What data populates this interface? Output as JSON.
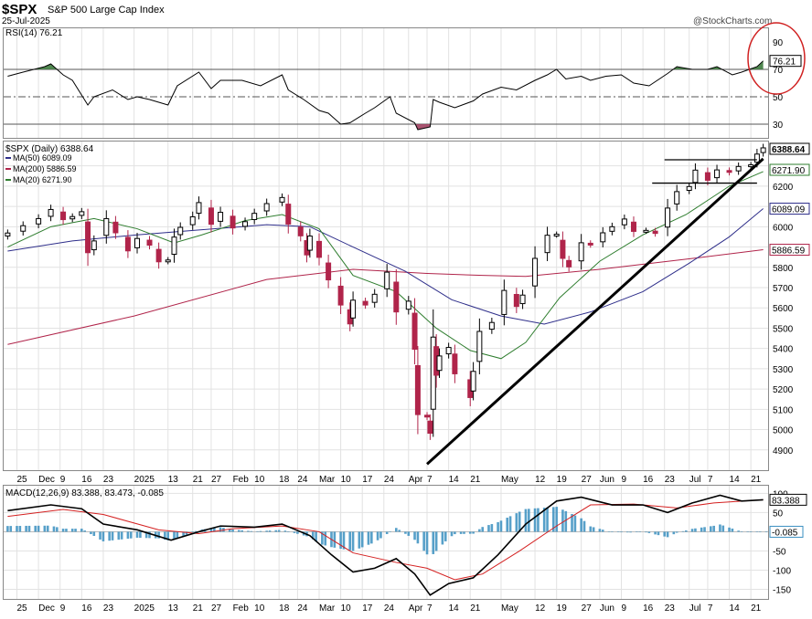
{
  "header": {
    "symbol": "$SPX",
    "name": "S&P 500 Large Cap Index",
    "date": "25-Jul-2025",
    "watermark": "@StockCharts.com"
  },
  "chart_data": [
    {
      "type": "line",
      "panel": "rsi",
      "label": "RSI(14) 76.21",
      "current_value": 76.21,
      "ylim": [
        20,
        100
      ],
      "ticks": [
        90,
        70,
        50,
        30
      ],
      "ref_lines": [
        70,
        50,
        30
      ],
      "points": [
        [
          "2024-11-22",
          65
        ],
        [
          "2024-11-27",
          68
        ],
        [
          "2024-12-04",
          72
        ],
        [
          "2024-12-06",
          74
        ],
        [
          "2024-12-10",
          66
        ],
        [
          "2024-12-13",
          62
        ],
        [
          "2024-12-18",
          44
        ],
        [
          "2024-12-20",
          50
        ],
        [
          "2024-12-26",
          55
        ],
        [
          "2024-12-31",
          48
        ],
        [
          "2025-01-03",
          50
        ],
        [
          "2025-01-07",
          48
        ],
        [
          "2025-01-13",
          44
        ],
        [
          "2025-01-16",
          58
        ],
        [
          "2025-01-23",
          68
        ],
        [
          "2025-01-27",
          56
        ],
        [
          "2025-01-30",
          62
        ],
        [
          "2025-02-06",
          62
        ],
        [
          "2025-02-12",
          58
        ],
        [
          "2025-02-19",
          66
        ],
        [
          "2025-02-21",
          55
        ],
        [
          "2025-02-26",
          48
        ],
        [
          "2025-03-03",
          40
        ],
        [
          "2025-03-06",
          38
        ],
        [
          "2025-03-10",
          30
        ],
        [
          "2025-03-13",
          31
        ],
        [
          "2025-03-18",
          38
        ],
        [
          "2025-03-21",
          42
        ],
        [
          "2025-03-26",
          50
        ],
        [
          "2025-03-28",
          38
        ],
        [
          "2025-04-03",
          31
        ],
        [
          "2025-04-04",
          26
        ],
        [
          "2025-04-08",
          28
        ],
        [
          "2025-04-09",
          48
        ],
        [
          "2025-04-11",
          46
        ],
        [
          "2025-04-16",
          42
        ],
        [
          "2025-04-22",
          47
        ],
        [
          "2025-04-25",
          52
        ],
        [
          "2025-05-01",
          57
        ],
        [
          "2025-05-06",
          55
        ],
        [
          "2025-05-12",
          62
        ],
        [
          "2025-05-16",
          66
        ],
        [
          "2025-05-19",
          70
        ],
        [
          "2025-05-22",
          63
        ],
        [
          "2025-05-27",
          65
        ],
        [
          "2025-05-30",
          62
        ],
        [
          "2025-06-04",
          65
        ],
        [
          "2025-06-09",
          66
        ],
        [
          "2025-06-13",
          60
        ],
        [
          "2025-06-18",
          58
        ],
        [
          "2025-06-24",
          67
        ],
        [
          "2025-06-27",
          72
        ],
        [
          "2025-07-02",
          70
        ],
        [
          "2025-07-07",
          70
        ],
        [
          "2025-07-10",
          72
        ],
        [
          "2025-07-15",
          66
        ],
        [
          "2025-07-18",
          68
        ],
        [
          "2025-07-23",
          72
        ],
        [
          "2025-07-25",
          76.21
        ]
      ]
    },
    {
      "type": "candlestick",
      "panel": "price",
      "label": "$SPX (Daily) 6388.64",
      "last": 6388.64,
      "ylim": [
        4800,
        6420
      ],
      "ticks": [
        4900,
        5000,
        5100,
        5200,
        5300,
        5400,
        5500,
        5600,
        5700,
        5800,
        5900,
        6000,
        6100,
        6200,
        6300
      ],
      "value_flags": [
        {
          "value": 6388.64,
          "color": "#000000"
        },
        {
          "value": 6271.9,
          "color": "#2e7d2e"
        },
        {
          "value": 6089.09,
          "color": "#2e2e8a"
        },
        {
          "value": 5886.59,
          "color": "#b0244a"
        }
      ],
      "legend": [
        {
          "name": "MA(50) 6089.09",
          "color": "#2e2e8a"
        },
        {
          "name": "MA(200) 5886.59",
          "color": "#b0244a"
        },
        {
          "name": "MA(20) 6271.90",
          "color": "#2e7d2e"
        }
      ],
      "close": [
        [
          "2024-11-22",
          5969
        ],
        [
          "2024-11-27",
          6005
        ],
        [
          "2024-12-02",
          6040
        ],
        [
          "2024-12-06",
          6085
        ],
        [
          "2024-12-10",
          6035
        ],
        [
          "2024-12-13",
          6050
        ],
        [
          "2024-12-16",
          6074
        ],
        [
          "2024-12-18",
          5872
        ],
        [
          "2024-12-20",
          5930
        ],
        [
          "2024-12-24",
          6040
        ],
        [
          "2024-12-27",
          5970
        ],
        [
          "2024-12-31",
          5881
        ],
        [
          "2025-01-03",
          5942
        ],
        [
          "2025-01-07",
          5909
        ],
        [
          "2025-01-10",
          5827
        ],
        [
          "2025-01-13",
          5836
        ],
        [
          "2025-01-15",
          5949
        ],
        [
          "2025-01-17",
          5997
        ],
        [
          "2025-01-21",
          6049
        ],
        [
          "2025-01-23",
          6119
        ],
        [
          "2025-01-27",
          6012
        ],
        [
          "2025-01-30",
          6071
        ],
        [
          "2025-02-03",
          5994
        ],
        [
          "2025-02-07",
          6025
        ],
        [
          "2025-02-10",
          6066
        ],
        [
          "2025-02-14",
          6114
        ],
        [
          "2025-02-19",
          6144
        ],
        [
          "2025-02-21",
          6013
        ],
        [
          "2025-02-25",
          5955
        ],
        [
          "2025-02-27",
          5861
        ],
        [
          "2025-02-28",
          5954
        ],
        [
          "2025-03-03",
          5849
        ],
        [
          "2025-03-06",
          5738
        ],
        [
          "2025-03-10",
          5614
        ],
        [
          "2025-03-13",
          5521
        ],
        [
          "2025-03-14",
          5638
        ],
        [
          "2025-03-18",
          5614
        ],
        [
          "2025-03-21",
          5667
        ],
        [
          "2025-03-25",
          5776
        ],
        [
          "2025-03-28",
          5580
        ],
        [
          "2025-04-01",
          5633
        ],
        [
          "2025-04-03",
          5396
        ],
        [
          "2025-04-04",
          5074
        ],
        [
          "2025-04-07",
          5062
        ],
        [
          "2025-04-08",
          4982
        ],
        [
          "2025-04-09",
          5456
        ],
        [
          "2025-04-10",
          5268
        ],
        [
          "2025-04-11",
          5363
        ],
        [
          "2025-04-14",
          5405
        ],
        [
          "2025-04-16",
          5275
        ],
        [
          "2025-04-21",
          5158
        ],
        [
          "2025-04-22",
          5287
        ],
        [
          "2025-04-24",
          5484
        ],
        [
          "2025-04-28",
          5528
        ],
        [
          "2025-05-02",
          5686
        ],
        [
          "2025-05-06",
          5607
        ],
        [
          "2025-05-08",
          5663
        ],
        [
          "2025-05-12",
          5844
        ],
        [
          "2025-05-16",
          5958
        ],
        [
          "2025-05-19",
          5963
        ],
        [
          "2025-05-21",
          5844
        ],
        [
          "2025-05-23",
          5802
        ],
        [
          "2025-05-27",
          5921
        ],
        [
          "2025-05-30",
          5911
        ],
        [
          "2025-06-03",
          5970
        ],
        [
          "2025-06-06",
          6000
        ],
        [
          "2025-06-10",
          6038
        ],
        [
          "2025-06-13",
          5977
        ],
        [
          "2025-06-17",
          5982
        ],
        [
          "2025-06-20",
          5967
        ],
        [
          "2025-06-24",
          6092
        ],
        [
          "2025-06-27",
          6173
        ],
        [
          "2025-07-01",
          6198
        ],
        [
          "2025-07-03",
          6279
        ],
        [
          "2025-07-07",
          6229
        ],
        [
          "2025-07-10",
          6280
        ],
        [
          "2025-07-14",
          6268
        ],
        [
          "2025-07-17",
          6297
        ],
        [
          "2025-07-21",
          6305
        ],
        [
          "2025-07-23",
          6358
        ],
        [
          "2025-07-25",
          6388.64
        ]
      ],
      "ma20": [
        [
          "2024-11-22",
          5900
        ],
        [
          "2024-12-06",
          6000
        ],
        [
          "2024-12-20",
          6040
        ],
        [
          "2025-01-03",
          5990
        ],
        [
          "2025-01-15",
          5920
        ],
        [
          "2025-01-24",
          5960
        ],
        [
          "2025-02-07",
          6030
        ],
        [
          "2025-02-19",
          6060
        ],
        [
          "2025-03-03",
          5990
        ],
        [
          "2025-03-14",
          5760
        ],
        [
          "2025-03-28",
          5680
        ],
        [
          "2025-04-10",
          5500
        ],
        [
          "2025-04-21",
          5390
        ],
        [
          "2025-05-01",
          5350
        ],
        [
          "2025-05-09",
          5430
        ],
        [
          "2025-05-20",
          5650
        ],
        [
          "2025-06-02",
          5830
        ],
        [
          "2025-06-16",
          5960
        ],
        [
          "2025-06-30",
          6060
        ],
        [
          "2025-07-14",
          6200
        ],
        [
          "2025-07-25",
          6271.9
        ]
      ],
      "ma50": [
        [
          "2024-11-22",
          5880
        ],
        [
          "2024-12-13",
          5930
        ],
        [
          "2025-01-03",
          5960
        ],
        [
          "2025-01-24",
          5985
        ],
        [
          "2025-02-14",
          6010
        ],
        [
          "2025-02-28",
          6000
        ],
        [
          "2025-03-14",
          5900
        ],
        [
          "2025-03-31",
          5780
        ],
        [
          "2025-04-15",
          5640
        ],
        [
          "2025-05-01",
          5560
        ],
        [
          "2025-05-15",
          5520
        ],
        [
          "2025-05-30",
          5580
        ],
        [
          "2025-06-16",
          5680
        ],
        [
          "2025-07-01",
          5820
        ],
        [
          "2025-07-14",
          5950
        ],
        [
          "2025-07-25",
          6089.09
        ]
      ],
      "ma200": [
        [
          "2024-11-22",
          5420
        ],
        [
          "2025-01-02",
          5560
        ],
        [
          "2025-02-14",
          5740
        ],
        [
          "2025-03-14",
          5790
        ],
        [
          "2025-04-07",
          5770
        ],
        [
          "2025-04-25",
          5760
        ],
        [
          "2025-05-09",
          5755
        ],
        [
          "2025-06-02",
          5790
        ],
        [
          "2025-06-30",
          5840
        ],
        [
          "2025-07-25",
          5886.59
        ]
      ],
      "annotations": {
        "trendline": [
          [
            "2025-04-07",
            4830
          ],
          [
            "2025-07-25",
            6335
          ]
        ],
        "resistance_lines": [
          {
            "from": "2025-06-23",
            "to": "2025-07-23",
            "value": 6330
          },
          {
            "from": "2025-06-19",
            "to": "2025-07-23",
            "value": 6215
          }
        ]
      }
    },
    {
      "type": "line",
      "panel": "macd",
      "label": "MACD(12,26,9) 83.388, 83.473, -0.085",
      "macd": 83.388,
      "signal": 83.473,
      "histogram": -0.085,
      "ylim": [
        -175,
        120
      ],
      "ticks": [
        100,
        50,
        -50,
        -100,
        -150
      ],
      "macd_line": [
        [
          "2024-11-22",
          55
        ],
        [
          "2024-12-06",
          70
        ],
        [
          "2024-12-16",
          60
        ],
        [
          "2024-12-23",
          20
        ],
        [
          "2025-01-03",
          5
        ],
        [
          "2025-01-14",
          -22
        ],
        [
          "2025-01-23",
          0
        ],
        [
          "2025-01-30",
          15
        ],
        [
          "2025-02-10",
          12
        ],
        [
          "2025-02-19",
          20
        ],
        [
          "2025-02-28",
          -10
        ],
        [
          "2025-03-07",
          -60
        ],
        [
          "2025-03-14",
          -105
        ],
        [
          "2025-03-21",
          -95
        ],
        [
          "2025-03-28",
          -70
        ],
        [
          "2025-04-03",
          -110
        ],
        [
          "2025-04-08",
          -165
        ],
        [
          "2025-04-14",
          -135
        ],
        [
          "2025-04-22",
          -120
        ],
        [
          "2025-04-30",
          -60
        ],
        [
          "2025-05-09",
          20
        ],
        [
          "2025-05-19",
          80
        ],
        [
          "2025-05-27",
          90
        ],
        [
          "2025-06-06",
          70
        ],
        [
          "2025-06-16",
          70
        ],
        [
          "2025-06-24",
          50
        ],
        [
          "2025-07-02",
          75
        ],
        [
          "2025-07-11",
          95
        ],
        [
          "2025-07-18",
          80
        ],
        [
          "2025-07-25",
          83.388
        ]
      ],
      "signal_line": [
        [
          "2024-11-22",
          40
        ],
        [
          "2024-12-10",
          58
        ],
        [
          "2024-12-23",
          45
        ],
        [
          "2025-01-10",
          5
        ],
        [
          "2025-01-23",
          -5
        ],
        [
          "2025-02-03",
          8
        ],
        [
          "2025-02-19",
          15
        ],
        [
          "2025-03-03",
          0
        ],
        [
          "2025-03-14",
          -55
        ],
        [
          "2025-03-28",
          -80
        ],
        [
          "2025-04-07",
          -95
        ],
        [
          "2025-04-16",
          -125
        ],
        [
          "2025-04-25",
          -110
        ],
        [
          "2025-05-07",
          -50
        ],
        [
          "2025-05-19",
          15
        ],
        [
          "2025-05-30",
          70
        ],
        [
          "2025-06-13",
          72
        ],
        [
          "2025-06-27",
          62
        ],
        [
          "2025-07-09",
          75
        ],
        [
          "2025-07-25",
          83.473
        ]
      ]
    }
  ],
  "x_axis": {
    "labels": [
      {
        "date": "2024-11-25",
        "text": "25"
      },
      {
        "date": "2024-12-02",
        "text": "Dec"
      },
      {
        "date": "2024-12-09",
        "text": "9"
      },
      {
        "date": "2024-12-16",
        "text": "16"
      },
      {
        "date": "2024-12-23",
        "text": "23"
      },
      {
        "date": "2025-01-02",
        "text": "2025"
      },
      {
        "date": "2025-01-13",
        "text": "13"
      },
      {
        "date": "2025-01-21",
        "text": "21"
      },
      {
        "date": "2025-01-27",
        "text": "27"
      },
      {
        "date": "2025-02-03",
        "text": "Feb"
      },
      {
        "date": "2025-02-10",
        "text": "10"
      },
      {
        "date": "2025-02-18",
        "text": "18"
      },
      {
        "date": "2025-02-24",
        "text": "24"
      },
      {
        "date": "2025-03-03",
        "text": "Mar"
      },
      {
        "date": "2025-03-10",
        "text": "10"
      },
      {
        "date": "2025-03-17",
        "text": "17"
      },
      {
        "date": "2025-03-24",
        "text": "24"
      },
      {
        "date": "2025-04-01",
        "text": "Apr"
      },
      {
        "date": "2025-04-07",
        "text": "7"
      },
      {
        "date": "2025-04-14",
        "text": "14"
      },
      {
        "date": "2025-04-21",
        "text": "21"
      },
      {
        "date": "2025-05-01",
        "text": "May"
      },
      {
        "date": "2025-05-12",
        "text": "12"
      },
      {
        "date": "2025-05-19",
        "text": "19"
      },
      {
        "date": "2025-05-27",
        "text": "27"
      },
      {
        "date": "2025-06-02",
        "text": "Jun"
      },
      {
        "date": "2025-06-09",
        "text": "9"
      },
      {
        "date": "2025-06-16",
        "text": "16"
      },
      {
        "date": "2025-06-23",
        "text": "23"
      },
      {
        "date": "2025-07-01",
        "text": "Jul"
      },
      {
        "date": "2025-07-07",
        "text": "7"
      },
      {
        "date": "2025-07-14",
        "text": "14"
      },
      {
        "date": "2025-07-21",
        "text": "21"
      }
    ]
  },
  "colors": {
    "up": "#000000",
    "down": "#b0244a",
    "ma20": "#2e7d2e",
    "ma50": "#2e2e8a",
    "ma200": "#b0244a",
    "rsi_line": "#000000",
    "rsi_overbought_fill": "#3d7a3d",
    "rsi_oversold_fill": "#a04060",
    "macd_line": "#000000",
    "signal_line": "#d42020",
    "histogram": "#3a8fc0",
    "circle": "#d02020",
    "grid": "#e2e2e2"
  }
}
